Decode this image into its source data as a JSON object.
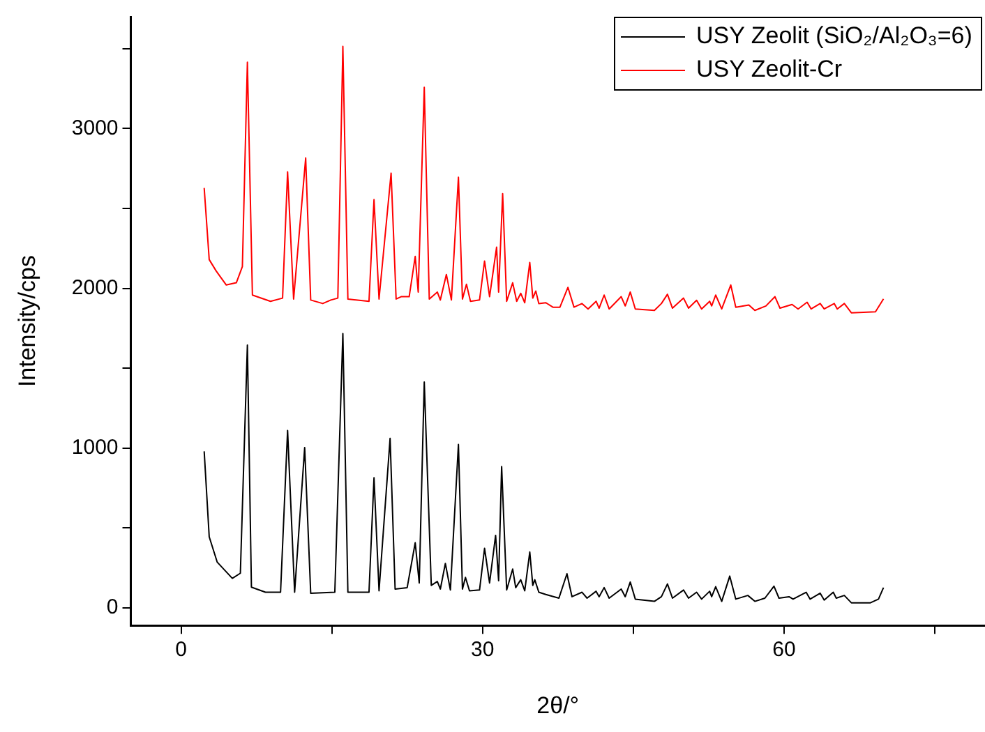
{
  "chart_data": {
    "type": "line",
    "xlabel": "2θ/°",
    "ylabel": "Intensity/cps",
    "xlim": [
      -5,
      80
    ],
    "xticks": [
      0,
      {
        "value": 15,
        "label": null
      },
      30,
      {
        "value": 45,
        "label": null
      },
      60,
      {
        "value": 75,
        "label": null
      }
    ],
    "ylim": [
      -110,
      3700
    ],
    "yticks": [
      0,
      {
        "value": 500,
        "label": null
      },
      1000,
      {
        "value": 1500,
        "label": null
      },
      2000,
      {
        "value": 2500,
        "label": null
      },
      3000,
      {
        "value": 3500,
        "label": null
      }
    ],
    "grid": false,
    "legend": "top right",
    "marker": "none",
    "line_style": "solid",
    "series": [
      {
        "name": "USY Zeolit (SiO₂/Al₂O₃=6)",
        "color": "#000000",
        "x": [
          2.3,
          2.8,
          3.6,
          5.1,
          5.9,
          6.6,
          7.0,
          8.4,
          9.9,
          10.6,
          11.3,
          12.3,
          12.9,
          15.3,
          16.1,
          16.6,
          18.7,
          19.2,
          19.7,
          20.8,
          21.3,
          22.5,
          23.3,
          23.7,
          24.2,
          24.9,
          25.5,
          25.8,
          26.3,
          26.8,
          27.6,
          28.0,
          28.3,
          28.7,
          29.7,
          30.2,
          30.7,
          31.3,
          31.6,
          31.9,
          32.4,
          33.0,
          33.3,
          33.8,
          34.2,
          34.7,
          35.0,
          35.2,
          35.6,
          36.3,
          37.1,
          37.6,
          38.4,
          38.9,
          39.9,
          40.4,
          41.3,
          41.6,
          42.1,
          42.6,
          43.8,
          44.2,
          44.7,
          45.2,
          47.1,
          47.8,
          48.4,
          48.9,
          50.0,
          50.5,
          51.3,
          51.8,
          52.6,
          52.8,
          53.2,
          53.8,
          54.6,
          55.2,
          56.4,
          57.1,
          58.1,
          59.0,
          59.5,
          60.5,
          60.9,
          62.2,
          62.6,
          63.6,
          64.0,
          64.9,
          65.2,
          66.0,
          66.7,
          68.6,
          69.4,
          69.9
        ],
        "values": [
          980,
          445,
          286,
          185,
          217,
          1645,
          130,
          98,
          98,
          1110,
          98,
          1003,
          92,
          98,
          1717,
          98,
          98,
          815,
          107,
          1061,
          118,
          127,
          408,
          156,
          1414,
          141,
          165,
          118,
          278,
          112,
          1023,
          118,
          191,
          107,
          112,
          373,
          156,
          454,
          170,
          885,
          112,
          243,
          127,
          176,
          107,
          350,
          141,
          176,
          98,
          84,
          70,
          61,
          214,
          70,
          98,
          61,
          104,
          70,
          127,
          61,
          118,
          70,
          162,
          55,
          41,
          70,
          150,
          61,
          112,
          61,
          98,
          55,
          104,
          70,
          133,
          41,
          199,
          55,
          78,
          41,
          61,
          136,
          61,
          70,
          55,
          98,
          55,
          92,
          49,
          98,
          61,
          78,
          32,
          32,
          55,
          127
        ]
      },
      {
        "name": "USY Zeolit-Cr",
        "color": "#ff0000",
        "x": [
          2.3,
          2.8,
          3.5,
          4.5,
          5.5,
          6.1,
          6.6,
          7.1,
          8.9,
          10.1,
          10.6,
          11.2,
          12.4,
          12.9,
          14.1,
          14.9,
          15.6,
          16.1,
          16.6,
          18.7,
          19.2,
          19.7,
          20.9,
          21.4,
          21.9,
          22.7,
          23.3,
          23.6,
          24.2,
          24.7,
          25.5,
          25.8,
          26.4,
          26.9,
          27.6,
          28.0,
          28.4,
          28.8,
          29.7,
          30.2,
          30.7,
          31.4,
          31.6,
          32.0,
          32.4,
          33.0,
          33.4,
          33.8,
          34.2,
          34.7,
          35.0,
          35.3,
          35.6,
          36.3,
          37.0,
          37.7,
          38.5,
          39.1,
          39.9,
          40.5,
          41.3,
          41.6,
          42.1,
          42.6,
          43.8,
          44.2,
          44.7,
          45.2,
          47.1,
          47.8,
          48.4,
          48.9,
          50.0,
          50.5,
          51.3,
          51.8,
          52.6,
          52.8,
          53.2,
          53.8,
          54.7,
          55.2,
          56.5,
          57.1,
          58.2,
          59.1,
          59.6,
          60.8,
          61.4,
          62.3,
          62.7,
          63.6,
          64.0,
          65.0,
          65.3,
          66.0,
          66.7,
          69.1,
          69.9
        ],
        "values": [
          2628,
          2180,
          2108,
          2021,
          2035,
          2136,
          3415,
          1958,
          1919,
          1939,
          2729,
          1933,
          2816,
          1927,
          1905,
          1927,
          1939,
          3515,
          1933,
          1919,
          2556,
          1933,
          2721,
          1933,
          1948,
          1948,
          2200,
          1977,
          3258,
          1933,
          1977,
          1927,
          2087,
          1927,
          2695,
          1933,
          2026,
          1919,
          1927,
          2171,
          1948,
          2258,
          1977,
          2593,
          1919,
          2035,
          1919,
          1969,
          1910,
          2162,
          1939,
          1983,
          1905,
          1910,
          1882,
          1882,
          2006,
          1882,
          1905,
          1871,
          1919,
          1876,
          1958,
          1871,
          1948,
          1890,
          1977,
          1871,
          1862,
          1905,
          1963,
          1876,
          1939,
          1876,
          1925,
          1871,
          1919,
          1890,
          1958,
          1871,
          2021,
          1882,
          1896,
          1862,
          1890,
          1948,
          1876,
          1899,
          1871,
          1913,
          1871,
          1905,
          1871,
          1905,
          1871,
          1905,
          1847,
          1853,
          1934
        ]
      }
    ]
  }
}
